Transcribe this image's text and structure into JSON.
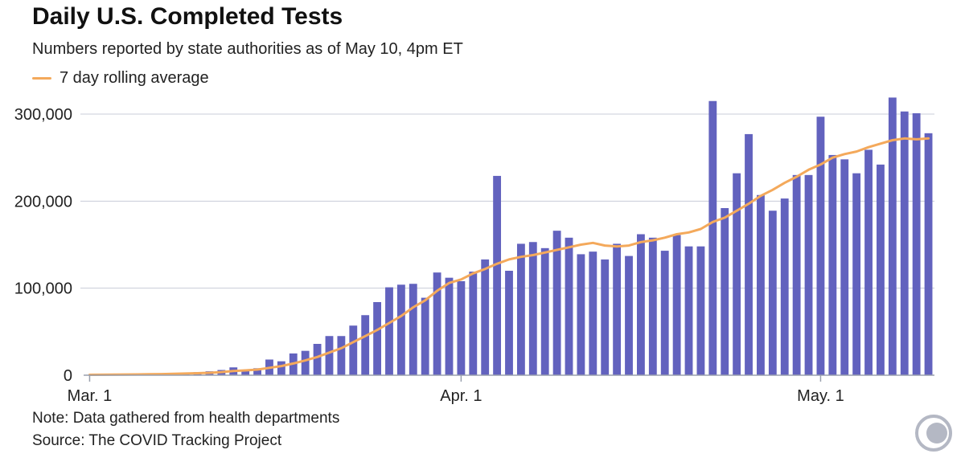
{
  "header": {
    "title": "Daily U.S. Completed Tests",
    "subtitle": "Numbers reported by state authorities as of May 10, 4pm ET",
    "legend_label": "7 day rolling average"
  },
  "footer": {
    "note": "Note: Data gathered from health departments",
    "source": "Source: The COVID Tracking Project"
  },
  "colors": {
    "bar": "#6262be",
    "average_line": "#f4a95b",
    "grid": "#c8ccd8",
    "logo": "#b4b8c4"
  },
  "logo_icon": "covid-tracking-project-logo-icon",
  "chart_data": {
    "type": "bar",
    "title": "Daily U.S. Completed Tests",
    "subtitle": "Numbers reported by state authorities as of May 10, 4pm ET",
    "xlabel": "",
    "ylabel": "",
    "ylim": [
      0,
      300000
    ],
    "yticks": [
      {
        "value": 0,
        "label": "0"
      },
      {
        "value": 100000,
        "label": "100,000"
      },
      {
        "value": 200000,
        "label": "200,000"
      },
      {
        "value": 300000,
        "label": "300,000"
      }
    ],
    "xticks": [
      {
        "date": "2020-03-01",
        "label": "Mar. 1"
      },
      {
        "date": "2020-04-01",
        "label": "Apr. 1"
      },
      {
        "date": "2020-05-01",
        "label": "May. 1"
      }
    ],
    "grid": true,
    "x": [
      "2020-03-01",
      "2020-03-02",
      "2020-03-03",
      "2020-03-04",
      "2020-03-05",
      "2020-03-06",
      "2020-03-07",
      "2020-03-08",
      "2020-03-09",
      "2020-03-10",
      "2020-03-11",
      "2020-03-12",
      "2020-03-13",
      "2020-03-14",
      "2020-03-15",
      "2020-03-16",
      "2020-03-17",
      "2020-03-18",
      "2020-03-19",
      "2020-03-20",
      "2020-03-21",
      "2020-03-22",
      "2020-03-23",
      "2020-03-24",
      "2020-03-25",
      "2020-03-26",
      "2020-03-27",
      "2020-03-28",
      "2020-03-29",
      "2020-03-30",
      "2020-03-31",
      "2020-04-01",
      "2020-04-02",
      "2020-04-03",
      "2020-04-04",
      "2020-04-05",
      "2020-04-06",
      "2020-04-07",
      "2020-04-08",
      "2020-04-09",
      "2020-04-10",
      "2020-04-11",
      "2020-04-12",
      "2020-04-13",
      "2020-04-14",
      "2020-04-15",
      "2020-04-16",
      "2020-04-17",
      "2020-04-18",
      "2020-04-19",
      "2020-04-20",
      "2020-04-21",
      "2020-04-22",
      "2020-04-23",
      "2020-04-24",
      "2020-04-25",
      "2020-04-26",
      "2020-04-27",
      "2020-04-28",
      "2020-04-29",
      "2020-04-30",
      "2020-05-01",
      "2020-05-02",
      "2020-05-03",
      "2020-05-04",
      "2020-05-05",
      "2020-05-06",
      "2020-05-07",
      "2020-05-08",
      "2020-05-09",
      "2020-05-10"
    ],
    "series": [
      {
        "name": "",
        "type": "bar",
        "values": [
          500,
          800,
          1000,
          1200,
          1500,
          1800,
          2000,
          2500,
          3000,
          3500,
          4500,
          6000,
          9000,
          5000,
          8000,
          18000,
          16000,
          25000,
          28000,
          36000,
          45000,
          45000,
          57000,
          69000,
          84000,
          101000,
          104000,
          105000,
          89000,
          118000,
          112000,
          108000,
          119000,
          133000,
          229000,
          120000,
          151000,
          153000,
          146000,
          166000,
          158000,
          139000,
          142000,
          133000,
          151000,
          137000,
          162000,
          158000,
          143000,
          161000,
          148000,
          148000,
          315000,
          192000,
          232000,
          277000,
          207000,
          189000,
          203000,
          230000,
          230000,
          297000,
          253000,
          248000,
          232000,
          259000,
          242000,
          319000,
          303000,
          301000,
          278000
        ]
      },
      {
        "name": "7 day rolling average",
        "type": "line",
        "values": [
          500,
          600,
          700,
          800,
          900,
          1100,
          1300,
          1600,
          1900,
          2300,
          2800,
          3600,
          4800,
          5500,
          6500,
          8500,
          10500,
          13500,
          17000,
          21000,
          26000,
          31000,
          38000,
          45000,
          52000,
          60000,
          68000,
          78000,
          86000,
          97000,
          106000,
          110000,
          117000,
          122000,
          128000,
          133000,
          136000,
          138000,
          141000,
          144000,
          147000,
          150000,
          152000,
          149000,
          148000,
          149000,
          153000,
          155000,
          158000,
          162000,
          164000,
          168000,
          176000,
          181000,
          189000,
          197000,
          206000,
          213000,
          221000,
          228000,
          236000,
          242000,
          250000,
          254000,
          257000,
          262000,
          266000,
          270000,
          272000,
          271000,
          272000
        ]
      }
    ]
  }
}
